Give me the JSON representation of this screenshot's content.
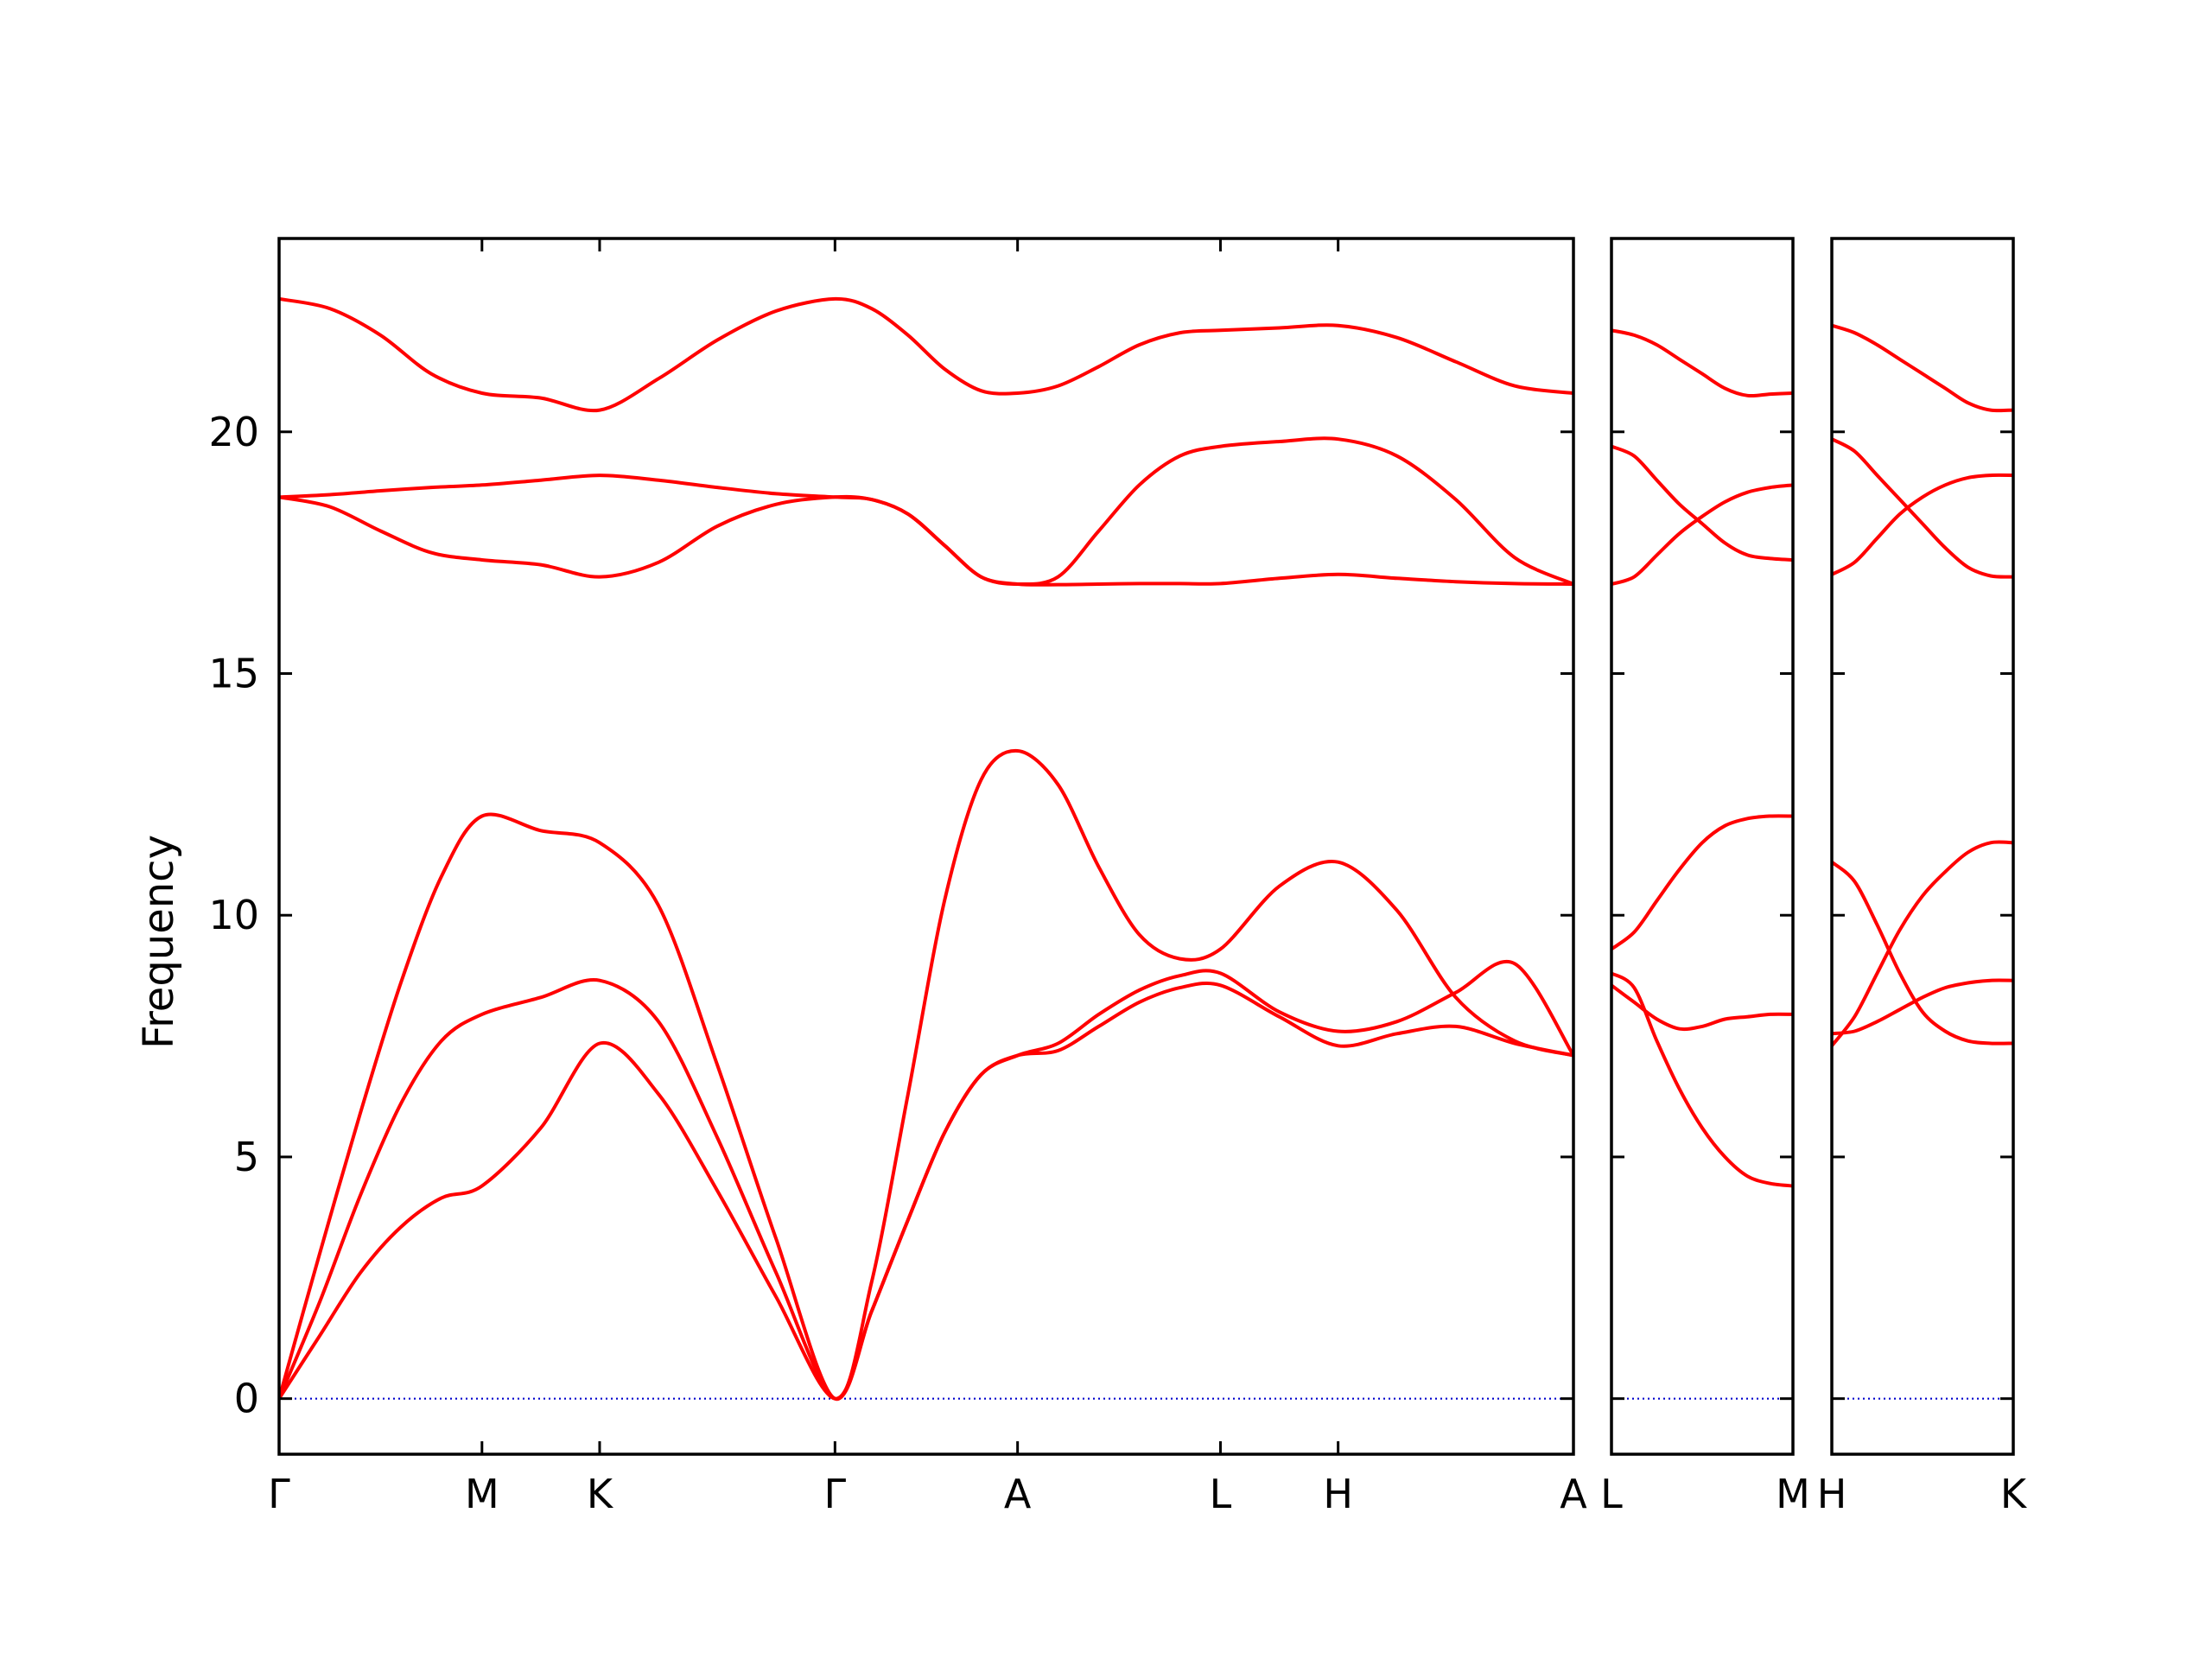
{
  "chart_data": {
    "type": "line",
    "ylabel": "Frequency",
    "ylim": [
      -1.15,
      24.0
    ],
    "yticks": [
      0,
      5,
      10,
      15,
      20
    ],
    "grid": false,
    "legend": "none",
    "colors": {
      "band": "#ff0000",
      "zero_line": "#0000cc"
    },
    "panels": [
      {
        "xlim": [
          0,
          6.38
        ],
        "ticks": [
          {
            "pos": 0.0,
            "label": "Γ"
          },
          {
            "pos": 1.0,
            "label": "M"
          },
          {
            "pos": 1.58,
            "label": "K"
          },
          {
            "pos": 2.74,
            "label": "Γ"
          },
          {
            "pos": 3.64,
            "label": "A"
          },
          {
            "pos": 4.64,
            "label": "L"
          },
          {
            "pos": 5.22,
            "label": "H"
          },
          {
            "pos": 6.38,
            "label": "A"
          }
        ],
        "series": [
          {
            "x": [
              0,
              0.2,
              0.4,
              0.6,
              0.8,
              1.0,
              1.29,
              1.58,
              1.87,
              2.16,
              2.45,
              2.74,
              2.92,
              3.1,
              3.28,
              3.46,
              3.64,
              3.84,
              4.04,
              4.24,
              4.44,
              4.64,
              4.93,
              5.22,
              5.51,
              5.8,
              6.09,
              6.38
            ],
            "y": [
              0,
              3.0,
              5.9,
              8.6,
              10.8,
              12.05,
              11.75,
              11.5,
              10.2,
              6.9,
              3.3,
              0,
              2.4,
              6.3,
              10.3,
              12.8,
              13.4,
              12.7,
              11.0,
              9.6,
              9.1,
              9.3,
              10.6,
              11.1,
              10.1,
              8.3,
              7.4,
              7.1
            ]
          },
          {
            "x": [
              0,
              0.2,
              0.4,
              0.6,
              0.8,
              1.0,
              1.29,
              1.58,
              1.87,
              2.16,
              2.45,
              2.74,
              2.92,
              3.1,
              3.28,
              3.46,
              3.64,
              3.84,
              4.04,
              4.24,
              4.44,
              4.64,
              4.93,
              5.22,
              5.51,
              5.8,
              6.09,
              6.38
            ],
            "y": [
              0,
              2.0,
              4.2,
              6.1,
              7.4,
              7.95,
              8.3,
              8.65,
              7.8,
              5.4,
              2.6,
              0,
              1.8,
              3.7,
              5.5,
              6.7,
              7.1,
              7.35,
              7.95,
              8.45,
              8.75,
              8.8,
              8.0,
              7.6,
              7.8,
              8.4,
              9.0,
              7.1
            ]
          },
          {
            "x": [
              0,
              0.2,
              0.4,
              0.6,
              0.8,
              1.0,
              1.29,
              1.58,
              1.87,
              2.16,
              2.45,
              2.74,
              2.92,
              3.1,
              3.28,
              3.46,
              3.64,
              3.84,
              4.04,
              4.24,
              4.44,
              4.64,
              4.93,
              5.22,
              5.51,
              5.8,
              6.09,
              6.38
            ],
            "y": [
              0,
              1.3,
              2.6,
              3.55,
              4.15,
              4.4,
              5.6,
              7.35,
              6.3,
              4.3,
              2.1,
              0,
              1.8,
              3.7,
              5.5,
              6.7,
              7.1,
              7.2,
              7.7,
              8.2,
              8.5,
              8.55,
              7.9,
              7.3,
              7.55,
              7.7,
              7.35,
              7.1
            ]
          },
          {
            "x": [
              0,
              0.25,
              0.5,
              0.75,
              1.0,
              1.29,
              1.58,
              1.87,
              2.16,
              2.45,
              2.74,
              2.92,
              3.1,
              3.28,
              3.46,
              3.64,
              3.84,
              4.04,
              4.24,
              4.44,
              4.64,
              4.93,
              5.22,
              5.51,
              5.8,
              6.09,
              6.38
            ],
            "y": [
              22.75,
              22.55,
              22.0,
              21.2,
              20.8,
              20.7,
              20.45,
              21.1,
              21.9,
              22.5,
              22.75,
              22.55,
              22.0,
              21.3,
              20.85,
              20.8,
              20.95,
              21.35,
              21.8,
              22.05,
              22.1,
              22.15,
              22.2,
              21.95,
              21.45,
              20.95,
              20.8
            ]
          },
          {
            "x": [
              0,
              0.25,
              0.5,
              0.75,
              1.0,
              1.29,
              1.58,
              1.87,
              2.16,
              2.45,
              2.74,
              2.92,
              3.1,
              3.28,
              3.46,
              3.64,
              3.84,
              4.04,
              4.24,
              4.44,
              4.64,
              4.93,
              5.22,
              5.51,
              5.8,
              6.09,
              6.38
            ],
            "y": [
              18.65,
              18.7,
              18.78,
              18.85,
              18.9,
              19.0,
              19.1,
              19.0,
              18.85,
              18.72,
              18.65,
              18.6,
              18.3,
              17.65,
              17.0,
              16.85,
              17.0,
              17.95,
              18.9,
              19.5,
              19.7,
              19.8,
              19.85,
              19.5,
              18.6,
              17.4,
              16.85
            ]
          },
          {
            "x": [
              0,
              0.25,
              0.5,
              0.75,
              1.0,
              1.29,
              1.58,
              1.87,
              2.16,
              2.45,
              2.74,
              2.92,
              3.1,
              3.28,
              3.46,
              3.64,
              3.84,
              4.04,
              4.24,
              4.44,
              4.64,
              4.93,
              5.22,
              5.51,
              5.8,
              6.09,
              6.38
            ],
            "y": [
              18.65,
              18.45,
              17.95,
              17.5,
              17.35,
              17.25,
              17.0,
              17.3,
              18.05,
              18.5,
              18.65,
              18.6,
              18.3,
              17.65,
              17.0,
              16.85,
              16.84,
              16.85,
              16.86,
              16.86,
              16.86,
              16.97,
              17.05,
              16.97,
              16.9,
              16.86,
              16.85
            ]
          }
        ]
      },
      {
        "xlim": [
          0,
          1.0
        ],
        "ticks": [
          {
            "pos": 0.0,
            "label": "L"
          },
          {
            "pos": 1.0,
            "label": "M"
          }
        ],
        "series": [
          {
            "x": [
              0,
              0.125,
              0.25,
              0.375,
              0.5,
              0.625,
              0.75,
              0.875,
              1.0
            ],
            "y": [
              22.1,
              22.0,
              21.8,
              21.5,
              21.2,
              20.9,
              20.75,
              20.78,
              20.8
            ]
          },
          {
            "x": [
              0,
              0.125,
              0.25,
              0.375,
              0.5,
              0.625,
              0.75,
              0.875,
              1.0
            ],
            "y": [
              19.7,
              19.5,
              19.0,
              18.5,
              18.1,
              17.7,
              17.45,
              17.38,
              17.35
            ]
          },
          {
            "x": [
              0,
              0.125,
              0.25,
              0.375,
              0.5,
              0.625,
              0.75,
              0.875,
              1.0
            ],
            "y": [
              16.85,
              17.0,
              17.45,
              17.9,
              18.25,
              18.55,
              18.75,
              18.85,
              18.9
            ]
          },
          {
            "x": [
              0,
              0.125,
              0.25,
              0.375,
              0.5,
              0.625,
              0.75,
              0.875,
              1.0
            ],
            "y": [
              9.3,
              9.65,
              10.3,
              10.95,
              11.5,
              11.85,
              12.0,
              12.05,
              12.05
            ]
          },
          {
            "x": [
              0,
              0.125,
              0.25,
              0.375,
              0.5,
              0.625,
              0.75,
              0.875,
              1.0
            ],
            "y": [
              8.8,
              8.5,
              7.4,
              6.4,
              5.6,
              5.0,
              4.6,
              4.45,
              4.4
            ]
          },
          {
            "x": [
              0,
              0.125,
              0.25,
              0.375,
              0.5,
              0.625,
              0.75,
              0.875,
              1.0
            ],
            "y": [
              8.55,
              8.2,
              7.85,
              7.65,
              7.7,
              7.85,
              7.9,
              7.95,
              7.95
            ]
          }
        ]
      },
      {
        "xlim": [
          0,
          1.0
        ],
        "ticks": [
          {
            "pos": 0.0,
            "label": "H"
          },
          {
            "pos": 1.0,
            "label": "K"
          }
        ],
        "series": [
          {
            "x": [
              0,
              0.125,
              0.25,
              0.375,
              0.5,
              0.625,
              0.75,
              0.875,
              1.0
            ],
            "y": [
              22.2,
              22.05,
              21.8,
              21.5,
              21.2,
              20.9,
              20.6,
              20.45,
              20.45
            ]
          },
          {
            "x": [
              0,
              0.125,
              0.25,
              0.375,
              0.5,
              0.625,
              0.75,
              0.875,
              1.0
            ],
            "y": [
              19.85,
              19.6,
              19.1,
              18.6,
              18.1,
              17.6,
              17.2,
              17.02,
              17.0
            ]
          },
          {
            "x": [
              0,
              0.125,
              0.25,
              0.375,
              0.5,
              0.625,
              0.75,
              0.875,
              1.0
            ],
            "y": [
              17.05,
              17.3,
              17.8,
              18.3,
              18.65,
              18.9,
              19.05,
              19.1,
              19.1
            ]
          },
          {
            "x": [
              0,
              0.125,
              0.25,
              0.375,
              0.5,
              0.625,
              0.75,
              0.875,
              1.0
            ],
            "y": [
              11.1,
              10.7,
              9.8,
              8.8,
              8.0,
              7.6,
              7.4,
              7.35,
              7.35
            ]
          },
          {
            "x": [
              0,
              0.125,
              0.25,
              0.375,
              0.5,
              0.625,
              0.75,
              0.875,
              1.0
            ],
            "y": [
              7.3,
              7.9,
              8.8,
              9.7,
              10.4,
              10.9,
              11.3,
              11.5,
              11.5
            ]
          },
          {
            "x": [
              0,
              0.125,
              0.25,
              0.375,
              0.5,
              0.625,
              0.75,
              0.875,
              1.0
            ],
            "y": [
              7.55,
              7.6,
              7.8,
              8.05,
              8.3,
              8.5,
              8.6,
              8.65,
              8.65
            ]
          }
        ]
      }
    ]
  }
}
